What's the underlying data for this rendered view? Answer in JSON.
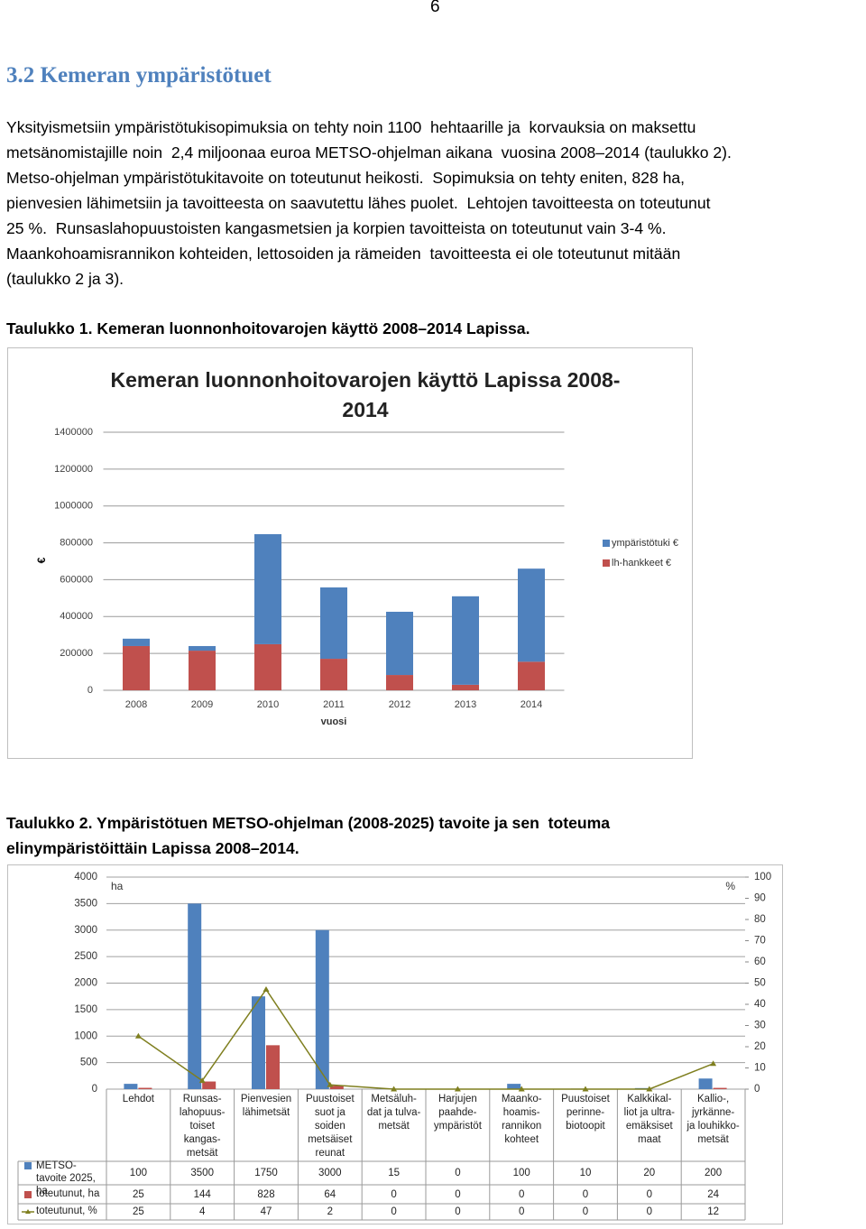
{
  "page_number": "6",
  "heading": "3.2 Kemeran ympäristötuet",
  "body": {
    "lines": [
      "Yksityismetsiin ympäristötukisopimuksia on tehty noin 1100  hehtaarille ja  korvauksia on maksettu",
      "metsänomistajille noin  2,4 miljoonaa euroa METSO-ohjelman aikana  vuosina 2008–2014 (taulukko 2).",
      "Metso-ohjelman ympäristötukitavoite on toteutunut heikosti.  Sopimuksia on tehty eniten, 828 ha,",
      "pienvesien lähimetsiin ja tavoitteesta on saavutettu lähes puolet.  Lehtojen tavoitteesta on toteutunut",
      "25 %.  Runsaslahopuustoisten kangasmetsien ja korpien tavoitteista on toteutunut vain 3-4 %.",
      "Maankohoamisrannikon kohteiden, lettosoiden ja rämeiden  tavoitteesta ei ole toteutunut mitään",
      "(taulukko 2 ja 3)."
    ]
  },
  "caption1": "Taulukko 1. Kemeran luonnonhoitovarojen käyttö 2008–2014 Lapissa.",
  "caption2": {
    "lines": [
      "Taulukko 2. Ympäristötuen METSO-ohjelman (2008-2025) tavoite ja sen  toteuma",
      "elinympäristöittäin Lapissa 2008–2014."
    ]
  },
  "chart_data": [
    {
      "type": "bar",
      "stacked": true,
      "title": "Kemeran luonnonhoitovarojen käyttö Lapissa 2008-2014",
      "x_label": "vuosi",
      "y_label": "€",
      "categories": [
        "2008",
        "2009",
        "2010",
        "2011",
        "2012",
        "2013",
        "2014"
      ],
      "series": [
        {
          "name": "ympäristötuki €",
          "color": "#4f81bd",
          "values": [
            40000,
            25000,
            597000,
            387000,
            343000,
            480000,
            505000
          ]
        },
        {
          "name": "lh-hankkeet €",
          "color": "#c0504d",
          "values": [
            240000,
            215000,
            250000,
            171000,
            83000,
            30000,
            155000
          ]
        }
      ],
      "ylim": [
        0,
        1400000
      ],
      "yticks": [
        0,
        200000,
        400000,
        600000,
        800000,
        1000000,
        1200000,
        1400000
      ],
      "grid": true,
      "legend": "right"
    },
    {
      "type": "combo",
      "y_unit": "ha",
      "y2_unit": "%",
      "categories": [
        "Lehdot",
        "Runsas-\nlahopuus-\ntoiset\nkangas-\nmetsät",
        "Pienvesien\nlähimetsät",
        "Puustoiset\nsuot ja\nsoiden\nmetsäiset\nreunat",
        "Metsäluh-\ndat ja tulva-\nmetsät",
        "Harjujen\npaahde-\nympäristöt",
        "Maanko-\nhoamis-\nrannikon\nkohteet",
        "Puustoiset\nperinne-\nbiotoopit",
        "Kalkkikal-\nliot ja ultra-\nemäksiset\nmaat",
        "Kallio-,\njyrkänne-\nja louhikko-\nmetsät"
      ],
      "series": [
        {
          "name": "METSO-tavoite 2025, ha",
          "color": "#4f81bd",
          "values": [
            100,
            3500,
            1750,
            3000,
            15,
            0,
            100,
            10,
            20,
            200
          ]
        },
        {
          "name": "toteutunut, ha",
          "color": "#c0504d",
          "values": [
            25,
            144,
            828,
            64,
            0,
            0,
            0,
            0,
            0,
            24
          ]
        },
        {
          "name": "toteutunut, %",
          "color": "#7f7f1f",
          "axis": "y2",
          "mark": "line",
          "values": [
            25,
            4,
            47,
            2,
            0,
            0,
            0,
            0,
            0,
            12
          ]
        }
      ],
      "ylim": [
        0,
        4000
      ],
      "yticks": [
        0,
        500,
        1000,
        1500,
        2000,
        2500,
        3000,
        3500,
        4000
      ],
      "y2lim": [
        0,
        100
      ],
      "y2ticks": [
        0,
        10,
        20,
        30,
        40,
        50,
        60,
        70,
        80,
        90,
        100
      ],
      "grid": true,
      "legend": "table"
    }
  ]
}
